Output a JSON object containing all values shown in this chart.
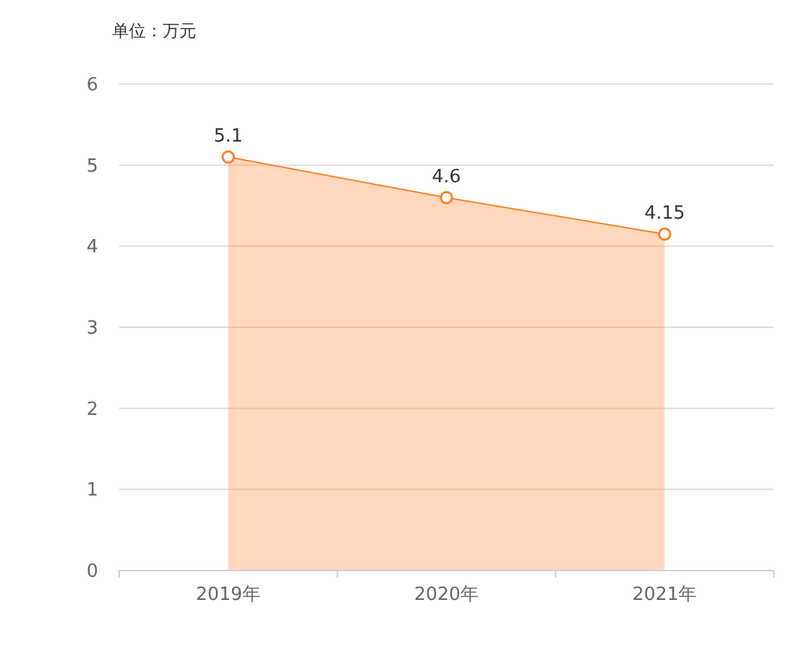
{
  "chart_data": {
    "type": "area",
    "ylabel": "单位：万元",
    "categories": [
      "2019年",
      "2020年",
      "2021年"
    ],
    "series": [
      {
        "color": "#ff7f27",
        "values": [
          5.1,
          4.6,
          4.15
        ]
      }
    ],
    "ylim": [
      0,
      6
    ],
    "yticks": [
      0,
      1,
      2,
      3,
      4,
      5,
      6
    ],
    "grid": "y",
    "marker": "circle",
    "data_labels": true
  }
}
